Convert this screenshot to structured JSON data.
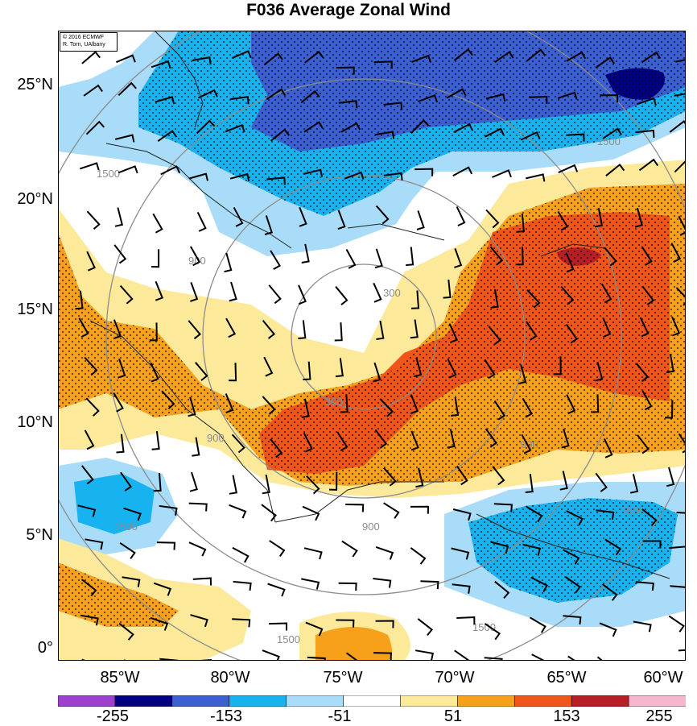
{
  "title": "F036 Average Zonal Wind",
  "credit": {
    "line1": "© 2016 ECMWF",
    "line2": "R. Torn, UAlbany"
  },
  "lat_labels": [
    "25°N",
    "20°N",
    "15°N",
    "10°N",
    "5°N",
    "0°"
  ],
  "lon_labels": [
    "85°W",
    "80°W",
    "75°W",
    "70°W",
    "65°W",
    "60°W"
  ],
  "colorbar": {
    "labels": [
      "-255",
      "-153",
      "-51",
      "51",
      "153",
      "255"
    ],
    "colors": [
      "#9d3fcf",
      "#000080",
      "#3c5fd1",
      "#17b3f0",
      "#a8dcf8",
      "#ffffff",
      "#fce99a",
      "#f7a01a",
      "#f0551a",
      "#b81e25",
      "#f7b6d0"
    ]
  },
  "contour_labels": [
    "1500",
    "1500",
    "900",
    "300",
    "300",
    "900",
    "900",
    "900",
    "1500",
    "1500",
    "1500",
    "1500"
  ],
  "colors": {
    "strong_negative": "#000080",
    "negative": "#3c5fd1",
    "moderate_negative": "#17b3f0",
    "weak_negative": "#a8dcf8",
    "weak_positive": "#fce99a",
    "moderate_positive": "#f7a01a",
    "positive": "#f0551a",
    "strong_positive": "#b81e25"
  }
}
